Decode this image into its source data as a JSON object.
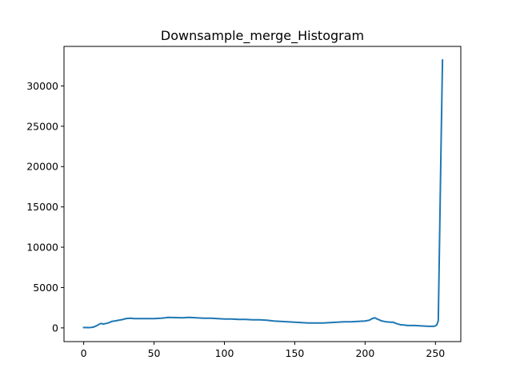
{
  "chart_data": {
    "type": "line",
    "title": "Downsample_merge_Histogram",
    "xlabel": "",
    "ylabel": "",
    "xlim": [
      -14,
      268
    ],
    "ylim": [
      -1700,
      34900
    ],
    "xticks": [
      0,
      50,
      100,
      150,
      200,
      250
    ],
    "yticks": [
      0,
      5000,
      10000,
      15000,
      20000,
      25000,
      30000
    ],
    "grid": false,
    "legend": "none",
    "series": [
      {
        "color": "#1f77b4",
        "x": [
          0,
          4,
          7,
          9,
          11,
          12,
          14,
          16,
          18,
          20,
          22,
          25,
          28,
          30,
          33,
          36,
          40,
          45,
          50,
          55,
          58,
          60,
          65,
          70,
          75,
          80,
          85,
          90,
          95,
          100,
          105,
          110,
          115,
          120,
          125,
          130,
          135,
          140,
          145,
          150,
          155,
          160,
          165,
          170,
          175,
          180,
          185,
          190,
          195,
          200,
          203,
          205,
          207,
          208,
          210,
          212,
          215,
          218,
          220,
          222,
          225,
          228,
          230,
          235,
          240,
          245,
          249,
          250,
          251,
          252,
          253,
          254,
          255
        ],
        "y": [
          50,
          30,
          100,
          250,
          450,
          550,
          480,
          550,
          650,
          800,
          850,
          950,
          1050,
          1150,
          1200,
          1150,
          1150,
          1150,
          1150,
          1200,
          1250,
          1300,
          1280,
          1250,
          1300,
          1250,
          1200,
          1200,
          1150,
          1100,
          1100,
          1050,
          1050,
          1000,
          1000,
          950,
          850,
          800,
          750,
          700,
          650,
          600,
          600,
          600,
          650,
          700,
          750,
          750,
          800,
          850,
          950,
          1150,
          1250,
          1150,
          1000,
          850,
          750,
          700,
          700,
          550,
          400,
          350,
          300,
          300,
          250,
          200,
          200,
          250,
          400,
          900,
          12000,
          23000,
          33200
        ]
      }
    ]
  }
}
